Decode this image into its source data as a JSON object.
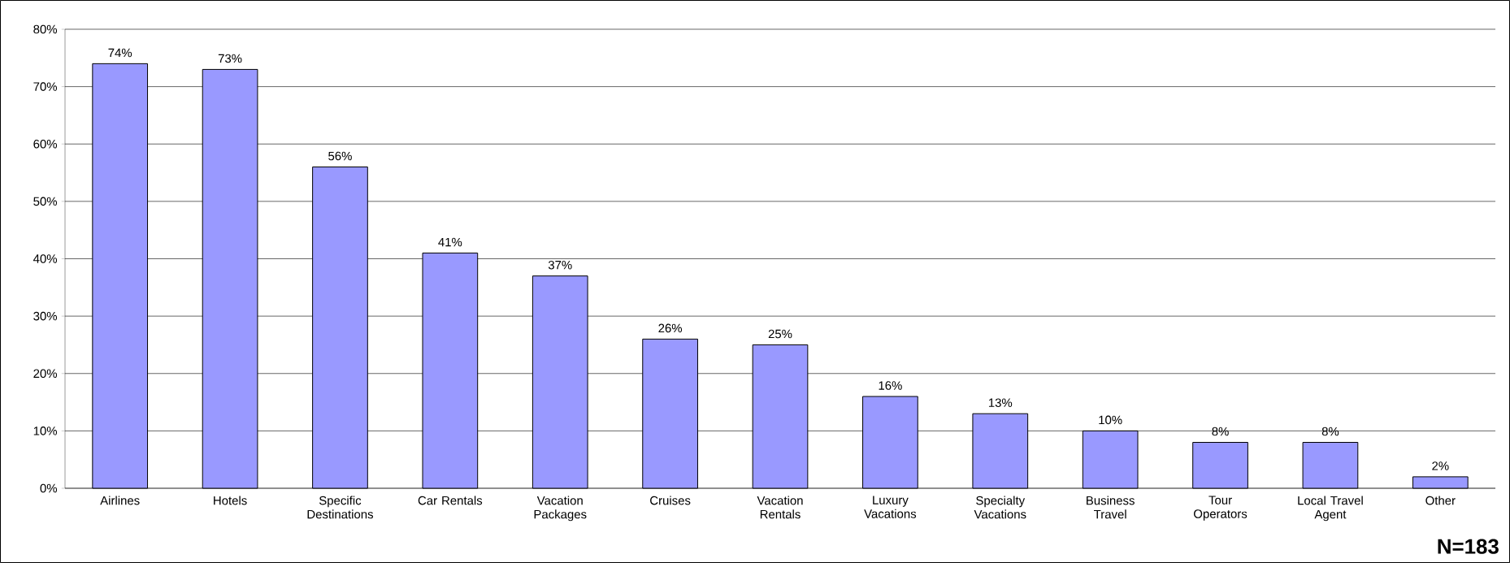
{
  "chart_data": {
    "type": "bar",
    "categories": [
      "Airlines",
      "Hotels",
      "Specific Destinations",
      "Car Rentals",
      "Vacation Packages",
      "Cruises",
      "Vacation Rentals",
      "Luxury Vacations",
      "Specialty Vacations",
      "Business Travel",
      "Tour Operators",
      "Local Travel Agent",
      "Other"
    ],
    "values": [
      74,
      73,
      56,
      41,
      37,
      26,
      25,
      16,
      13,
      10,
      8,
      8,
      2
    ],
    "value_labels": [
      "74%",
      "73%",
      "56%",
      "41%",
      "37%",
      "26%",
      "25%",
      "16%",
      "13%",
      "10%",
      "8%",
      "8%",
      "2%"
    ],
    "color": "#9999ff",
    "ylim": [
      0,
      80
    ],
    "yticks": [
      {
        "value": 0,
        "label": "0%"
      },
      {
        "value": 10,
        "label": "10%"
      },
      {
        "value": 20,
        "label": "20%"
      },
      {
        "value": 30,
        "label": "30%"
      },
      {
        "value": 40,
        "label": "40%"
      },
      {
        "value": 50,
        "label": "50%"
      },
      {
        "value": 60,
        "label": "60%"
      },
      {
        "value": 70,
        "label": "70%"
      },
      {
        "value": 80,
        "label": "80%"
      }
    ],
    "grid": "y",
    "annotations": [
      "N=183"
    ]
  }
}
